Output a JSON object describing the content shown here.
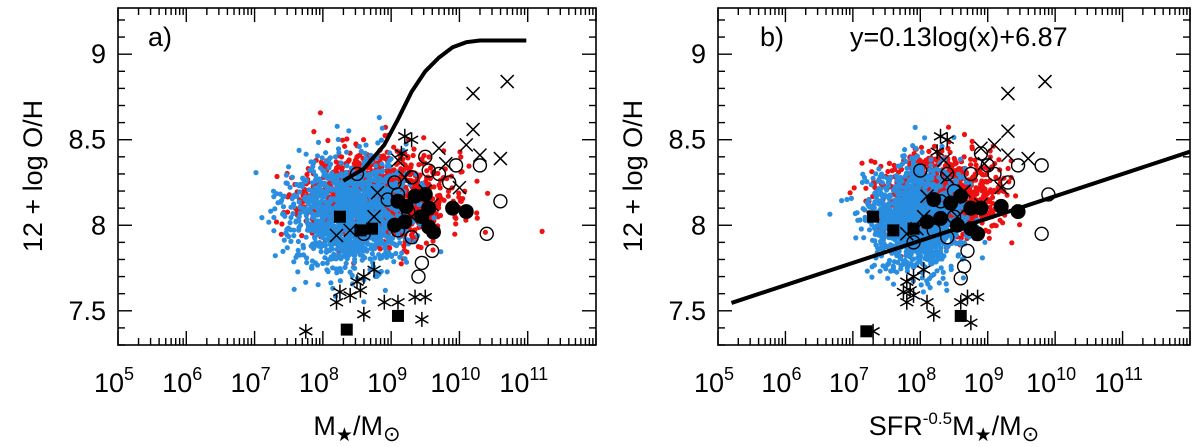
{
  "chart_data": [
    {
      "type": "scatter",
      "panel_label": "a)",
      "xscale": "log",
      "xlim_exp": [
        5,
        12
      ],
      "ylim": [
        7.3,
        9.27
      ],
      "xlabel_main": "M",
      "xlabel_sub1": "★",
      "xlabel_mid": "/M",
      "xlabel_sub2": "⊙",
      "ylabel": "12 + log O/H",
      "x_tick_exponents": [
        5,
        6,
        7,
        8,
        9,
        10,
        11
      ],
      "x_tick_base": "10",
      "y_ticks": [
        7.5,
        8,
        8.5,
        9
      ],
      "y_tick_labels": [
        "7.5",
        "8",
        "8.5",
        "9"
      ],
      "colors": {
        "red": "#ee1111",
        "blue": "#2a8ee0",
        "black": "#000000"
      },
      "curve": {
        "name": "model curve",
        "points": [
          [
            8.3,
            8.26
          ],
          [
            8.6,
            8.33
          ],
          [
            8.9,
            8.47
          ],
          [
            9.1,
            8.62
          ],
          [
            9.3,
            8.78
          ],
          [
            9.5,
            8.9
          ],
          [
            9.7,
            8.98
          ],
          [
            9.9,
            9.04
          ],
          [
            10.1,
            9.07
          ],
          [
            10.3,
            9.08
          ],
          [
            10.5,
            9.08
          ],
          [
            10.98,
            9.08
          ]
        ]
      },
      "red_cloud": {
        "cx": 8.8,
        "cy": 8.17,
        "sx": 0.95,
        "sy": 0.13,
        "n": 1100,
        "seed": 11
      },
      "blue_cloud": {
        "cx": 8.4,
        "cy": 8.06,
        "sx": 0.8,
        "sy": 0.16,
        "n": 1300,
        "seed": 23
      },
      "filled_circles": [
        [
          9.1,
          8.14
        ],
        [
          9.22,
          8.11
        ],
        [
          9.35,
          8.17
        ],
        [
          9.5,
          8.18
        ],
        [
          9.05,
          8.0
        ],
        [
          9.2,
          8.02
        ],
        [
          9.45,
          8.05
        ],
        [
          9.55,
          7.99
        ],
        [
          9.62,
          7.96
        ],
        [
          9.55,
          8.1
        ],
        [
          9.9,
          8.1
        ],
        [
          10.1,
          8.08
        ]
      ],
      "filled_squares": [
        [
          8.25,
          8.05
        ],
        [
          8.55,
          7.97
        ],
        [
          8.72,
          7.98
        ],
        [
          8.35,
          7.39
        ],
        [
          9.1,
          7.47
        ]
      ],
      "open_circles": [
        [
          8.5,
          8.3
        ],
        [
          8.95,
          8.15
        ],
        [
          9.1,
          8.18
        ],
        [
          9.3,
          8.28
        ],
        [
          9.5,
          8.4
        ],
        [
          9.55,
          8.32
        ],
        [
          9.7,
          8.3
        ],
        [
          9.85,
          8.25
        ],
        [
          9.95,
          8.35
        ],
        [
          10.3,
          8.35
        ],
        [
          10.6,
          8.14
        ],
        [
          10.4,
          7.95
        ],
        [
          9.6,
          7.85
        ],
        [
          9.45,
          7.78
        ],
        [
          9.4,
          7.7
        ],
        [
          9.3,
          7.93
        ],
        [
          9.1,
          7.97
        ],
        [
          8.6,
          7.95
        ],
        [
          9.05,
          8.25
        ],
        [
          9.25,
          8.08
        ]
      ],
      "crosses": [
        [
          10.7,
          8.84
        ],
        [
          10.2,
          8.77
        ],
        [
          10.2,
          8.56
        ],
        [
          10.6,
          8.39
        ],
        [
          10.1,
          8.47
        ],
        [
          9.7,
          8.45
        ],
        [
          9.8,
          8.36
        ],
        [
          10.3,
          8.41
        ],
        [
          10.0,
          8.22
        ],
        [
          9.5,
          8.2
        ],
        [
          9.2,
          8.28
        ],
        [
          8.8,
          8.19
        ],
        [
          9.3,
          8.05
        ],
        [
          8.75,
          8.05
        ],
        [
          8.2,
          7.94
        ],
        [
          8.4,
          7.97
        ],
        [
          9.6,
          8.12
        ],
        [
          9.1,
          8.38
        ]
      ],
      "asterisks": [
        [
          9.2,
          8.52
        ],
        [
          9.3,
          8.5
        ],
        [
          9.15,
          8.42
        ],
        [
          8.5,
          7.67
        ],
        [
          8.6,
          7.7
        ],
        [
          8.75,
          7.74
        ],
        [
          8.55,
          7.62
        ],
        [
          8.2,
          7.55
        ],
        [
          8.4,
          7.59
        ],
        [
          8.25,
          7.61
        ],
        [
          7.75,
          7.38
        ],
        [
          8.6,
          7.48
        ],
        [
          9.1,
          7.55
        ],
        [
          9.35,
          7.58
        ],
        [
          9.5,
          7.58
        ],
        [
          9.45,
          7.45
        ],
        [
          8.9,
          7.55
        ]
      ]
    },
    {
      "type": "scatter",
      "panel_label": "b)",
      "fit_equation": "y=0.13log(x)+6.87",
      "xscale": "log",
      "xlim_exp": [
        5,
        12
      ],
      "ylim": [
        7.3,
        9.27
      ],
      "xlabel_main": "SFR",
      "xlabel_exp": "-0.5",
      "xlabel_mid": "M",
      "xlabel_sub1": "★",
      "xlabel_tail": "/M",
      "xlabel_sub2": "⊙",
      "ylabel": "12 + log O/H",
      "x_tick_exponents": [
        5,
        6,
        7,
        8,
        9,
        10,
        11
      ],
      "x_tick_base": "10",
      "y_ticks": [
        7.5,
        8,
        8.5,
        9
      ],
      "y_tick_labels": [
        "7.5",
        "8",
        "8.5",
        "9"
      ],
      "fit_line": {
        "slope": 0.13,
        "intercept": 6.87,
        "x_from": 5.2,
        "x_to": 12.0
      },
      "red_cloud": {
        "cx": 8.3,
        "cy": 8.17,
        "sx": 0.75,
        "sy": 0.12,
        "n": 1000,
        "seed": 37
      },
      "blue_cloud": {
        "cx": 7.95,
        "cy": 8.04,
        "sx": 0.62,
        "sy": 0.15,
        "n": 1300,
        "seed": 41
      },
      "filled_circles": [
        [
          8.2,
          8.15
        ],
        [
          8.45,
          8.13
        ],
        [
          8.6,
          8.17
        ],
        [
          8.75,
          8.1
        ],
        [
          8.1,
          8.02
        ],
        [
          8.3,
          8.04
        ],
        [
          8.55,
          8.0
        ],
        [
          8.75,
          7.98
        ],
        [
          8.85,
          7.95
        ],
        [
          8.9,
          8.1
        ],
        [
          9.2,
          8.11
        ],
        [
          9.45,
          8.08
        ]
      ],
      "filled_squares": [
        [
          7.3,
          8.05
        ],
        [
          7.6,
          7.97
        ],
        [
          7.9,
          7.98
        ],
        [
          7.2,
          7.38
        ],
        [
          8.6,
          7.47
        ]
      ],
      "open_circles": [
        [
          8.0,
          8.32
        ],
        [
          8.3,
          8.14
        ],
        [
          8.5,
          8.2
        ],
        [
          8.75,
          8.3
        ],
        [
          8.9,
          8.42
        ],
        [
          9.0,
          8.35
        ],
        [
          9.1,
          8.3
        ],
        [
          9.3,
          8.25
        ],
        [
          9.45,
          8.35
        ],
        [
          9.8,
          8.35
        ],
        [
          9.9,
          8.18
        ],
        [
          9.8,
          7.95
        ],
        [
          8.7,
          7.85
        ],
        [
          8.65,
          7.76
        ],
        [
          8.6,
          7.69
        ],
        [
          8.4,
          7.93
        ],
        [
          8.2,
          7.97
        ],
        [
          7.9,
          7.9
        ],
        [
          8.4,
          8.3
        ],
        [
          8.5,
          8.05
        ]
      ],
      "crosses": [
        [
          9.85,
          8.84
        ],
        [
          9.3,
          8.77
        ],
        [
          9.3,
          8.55
        ],
        [
          9.6,
          8.39
        ],
        [
          9.1,
          8.47
        ],
        [
          8.9,
          8.45
        ],
        [
          8.95,
          8.36
        ],
        [
          9.3,
          8.41
        ],
        [
          9.2,
          8.22
        ],
        [
          8.65,
          8.2
        ],
        [
          8.4,
          8.28
        ],
        [
          8.1,
          8.17
        ],
        [
          8.55,
          8.05
        ],
        [
          8.05,
          8.05
        ],
        [
          7.8,
          7.95
        ],
        [
          7.95,
          7.98
        ],
        [
          8.9,
          8.12
        ],
        [
          8.35,
          8.38
        ]
      ],
      "asterisks": [
        [
          8.3,
          8.52
        ],
        [
          8.4,
          8.5
        ],
        [
          8.25,
          8.43
        ],
        [
          7.8,
          7.67
        ],
        [
          7.9,
          7.7
        ],
        [
          8.05,
          7.74
        ],
        [
          7.85,
          7.62
        ],
        [
          7.8,
          7.55
        ],
        [
          7.9,
          7.59
        ],
        [
          7.75,
          7.61
        ],
        [
          7.3,
          7.38
        ],
        [
          8.2,
          7.48
        ],
        [
          8.6,
          7.55
        ],
        [
          8.7,
          7.58
        ],
        [
          8.85,
          7.58
        ],
        [
          8.75,
          7.43
        ],
        [
          8.1,
          7.55
        ]
      ]
    }
  ]
}
